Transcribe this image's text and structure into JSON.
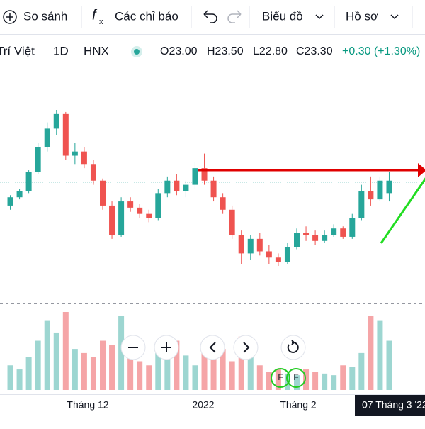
{
  "toolbar": {
    "compare": "So sánh",
    "indicators": "Các chỉ báo",
    "chart": "Biểu đồ",
    "profile": "Hồ sơ"
  },
  "legend": {
    "symbol": "Trí Việt",
    "interval": "1D",
    "exchange": "HNX",
    "open": "O23.00",
    "high": "H23.50",
    "low": "L22.80",
    "close": "C23.30",
    "change": "+0.30 (+1.30%)"
  },
  "x_labels": [
    "Tháng 12",
    "2022",
    "Tháng 2"
  ],
  "cursor_date": "07 Tháng 3 '22",
  "events": [
    "F",
    "F"
  ],
  "colors": {
    "up": "#26a69a",
    "down": "#ef5350",
    "up_volume": "#9dd6d1",
    "down_volume": "#f5a5a7"
  },
  "candles": [
    {
      "o": 22.7,
      "h": 22.95,
      "l": 22.6,
      "c": 22.9,
      "v": 30
    },
    {
      "o": 22.9,
      "h": 23.1,
      "l": 22.85,
      "c": 23.05,
      "v": 25
    },
    {
      "o": 23.05,
      "h": 23.55,
      "l": 23.0,
      "c": 23.5,
      "v": 40
    },
    {
      "o": 23.5,
      "h": 24.2,
      "l": 23.45,
      "c": 24.1,
      "v": 60
    },
    {
      "o": 24.1,
      "h": 24.7,
      "l": 24.0,
      "c": 24.55,
      "v": 85
    },
    {
      "o": 24.55,
      "h": 25.0,
      "l": 24.4,
      "c": 24.9,
      "v": 70
    },
    {
      "o": 24.9,
      "h": 24.95,
      "l": 23.8,
      "c": 23.9,
      "v": 95
    },
    {
      "o": 23.9,
      "h": 24.2,
      "l": 23.7,
      "c": 24.0,
      "v": 50
    },
    {
      "o": 24.0,
      "h": 24.1,
      "l": 23.6,
      "c": 23.7,
      "v": 45
    },
    {
      "o": 23.7,
      "h": 23.8,
      "l": 23.2,
      "c": 23.3,
      "v": 40
    },
    {
      "o": 23.3,
      "h": 23.35,
      "l": 22.6,
      "c": 22.7,
      "v": 60
    },
    {
      "o": 22.7,
      "h": 22.8,
      "l": 21.9,
      "c": 22.0,
      "v": 55
    },
    {
      "o": 22.0,
      "h": 22.9,
      "l": 21.95,
      "c": 22.8,
      "v": 90
    },
    {
      "o": 22.8,
      "h": 22.9,
      "l": 22.55,
      "c": 22.65,
      "v": 40
    },
    {
      "o": 22.65,
      "h": 22.75,
      "l": 22.4,
      "c": 22.5,
      "v": 35
    },
    {
      "o": 22.5,
      "h": 22.6,
      "l": 22.3,
      "c": 22.4,
      "v": 30
    },
    {
      "o": 22.4,
      "h": 23.1,
      "l": 22.35,
      "c": 23.0,
      "v": 45
    },
    {
      "o": 23.0,
      "h": 23.4,
      "l": 22.9,
      "c": 23.3,
      "v": 38
    },
    {
      "o": 23.3,
      "h": 23.45,
      "l": 22.95,
      "c": 23.05,
      "v": 60
    },
    {
      "o": 23.05,
      "h": 23.3,
      "l": 22.9,
      "c": 23.2,
      "v": 42
    },
    {
      "o": 23.2,
      "h": 23.75,
      "l": 23.1,
      "c": 23.6,
      "v": 30
    },
    {
      "o": 23.6,
      "h": 23.95,
      "l": 23.2,
      "c": 23.3,
      "v": 55
    },
    {
      "o": 23.3,
      "h": 23.4,
      "l": 22.8,
      "c": 22.9,
      "v": 48
    },
    {
      "o": 22.9,
      "h": 23.0,
      "l": 22.5,
      "c": 22.6,
      "v": 50
    },
    {
      "o": 22.6,
      "h": 22.7,
      "l": 21.9,
      "c": 22.0,
      "v": 35
    },
    {
      "o": 22.0,
      "h": 22.1,
      "l": 21.3,
      "c": 21.55,
      "v": 65
    },
    {
      "o": 21.55,
      "h": 22.0,
      "l": 21.4,
      "c": 21.9,
      "v": 40
    },
    {
      "o": 21.9,
      "h": 22.05,
      "l": 21.5,
      "c": 21.6,
      "v": 30
    },
    {
      "o": 21.6,
      "h": 21.75,
      "l": 21.3,
      "c": 21.45,
      "v": 22
    },
    {
      "o": 21.45,
      "h": 21.55,
      "l": 21.25,
      "c": 21.35,
      "v": 25
    },
    {
      "o": 21.35,
      "h": 21.8,
      "l": 21.3,
      "c": 21.7,
      "v": 20
    },
    {
      "o": 21.7,
      "h": 22.15,
      "l": 21.65,
      "c": 22.05,
      "v": 18
    },
    {
      "o": 22.05,
      "h": 22.2,
      "l": 21.85,
      "c": 22.0,
      "v": 25
    },
    {
      "o": 22.0,
      "h": 22.1,
      "l": 21.75,
      "c": 21.85,
      "v": 22
    },
    {
      "o": 21.85,
      "h": 22.1,
      "l": 21.8,
      "c": 22.0,
      "v": 20
    },
    {
      "o": 22.0,
      "h": 22.25,
      "l": 21.95,
      "c": 22.15,
      "v": 18
    },
    {
      "o": 22.15,
      "h": 22.2,
      "l": 21.9,
      "c": 21.95,
      "v": 30
    },
    {
      "o": 21.95,
      "h": 22.5,
      "l": 21.9,
      "c": 22.4,
      "v": 28
    },
    {
      "o": 22.4,
      "h": 23.2,
      "l": 22.35,
      "c": 23.05,
      "v": 45
    },
    {
      "o": 23.05,
      "h": 23.4,
      "l": 22.7,
      "c": 22.85,
      "v": 90
    },
    {
      "o": 22.85,
      "h": 23.4,
      "l": 22.8,
      "c": 23.3,
      "v": 85
    },
    {
      "o": 23.0,
      "h": 23.5,
      "l": 22.8,
      "c": 23.3,
      "v": 60
    }
  ]
}
